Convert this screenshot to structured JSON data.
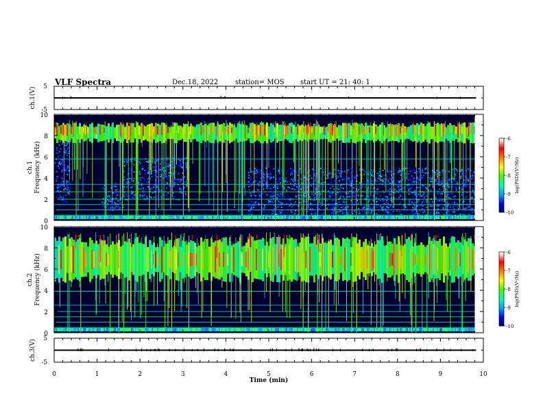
{
  "header": {
    "title": "VLF Spectra",
    "date": "Dec.18, 2022",
    "station": "station= MOS",
    "start": "start  UT =   21: 40: 1"
  },
  "colors": {
    "background": "#ffffff",
    "axis": "#000000",
    "spectrogram_background": "#000030",
    "colormap": [
      "#000050",
      "#0000ff",
      "#00a0ff",
      "#00ffb0",
      "#40ff00",
      "#ffff00",
      "#ff8000",
      "#ff0000",
      "#ffffff"
    ]
  },
  "chart_data": [
    {
      "type": "line",
      "name": "waveform-ch1",
      "ylabel": "ch.1(V)",
      "ylim": [
        -5,
        5
      ],
      "yticks": [
        5,
        -5
      ],
      "xlim": [
        0,
        10
      ],
      "level": 0
    },
    {
      "type": "heatmap",
      "name": "spectrogram-ch1",
      "ylabel_channel": "ch.1",
      "ylabel": "Frequency (kHz)",
      "ylim": [
        0,
        10
      ],
      "yticks": [
        0,
        2,
        4,
        6,
        8,
        10
      ],
      "xlim": [
        0,
        10
      ],
      "data_extent_min": 9.8,
      "colorbar": {
        "label": "log(PSD)(V²/Hz)",
        "range": [
          -10,
          -6
        ],
        "ticks": [
          "-6",
          "-7",
          "-8",
          "-9",
          "-10"
        ]
      },
      "lines_khz": [
        0.5,
        1.0,
        1.5,
        2.0,
        2.7,
        3.4,
        5.8
      ],
      "band_khz": [
        7.3,
        9.2
      ],
      "hiss_regions": [
        {
          "t": [
            0.0,
            0.35
          ],
          "f": [
            1.5,
            7.5
          ]
        },
        {
          "t": [
            1.1,
            1.6
          ],
          "f": [
            1.0,
            3.6
          ]
        },
        {
          "t": [
            1.6,
            3.1
          ],
          "f": [
            2.0,
            6.0
          ]
        },
        {
          "t": [
            4.5,
            9.8
          ],
          "f": [
            0.3,
            5.0
          ]
        }
      ]
    },
    {
      "type": "heatmap",
      "name": "spectrogram-ch2",
      "ylabel_channel": "ch.2",
      "ylabel": "Frequency (kHz)",
      "ylim": [
        0,
        10
      ],
      "yticks": [
        0,
        2,
        4,
        6,
        8,
        10
      ],
      "xlim": [
        0,
        10
      ],
      "data_extent_min": 9.8,
      "colorbar": {
        "label": "log(PSD)(V²/Hz)",
        "range": [
          -10,
          -6
        ],
        "ticks": [
          "-6",
          "-7",
          "-8",
          "-9",
          "-10"
        ]
      },
      "lines_khz": [
        0.5,
        1.0,
        1.5,
        2.0,
        2.6,
        3.9
      ],
      "band_khz": [
        4.8,
        9.0
      ],
      "hiss_regions": []
    },
    {
      "type": "line",
      "name": "waveform-ch3",
      "ylabel": "ch.3(V)",
      "ylim": [
        -5,
        5
      ],
      "yticks": [
        5,
        -5
      ],
      "xlim": [
        0,
        10
      ],
      "level": 0,
      "xlabel": "Time (min)",
      "xticks": [
        0,
        1,
        2,
        3,
        4,
        5,
        6,
        7,
        8,
        9,
        10
      ]
    }
  ]
}
